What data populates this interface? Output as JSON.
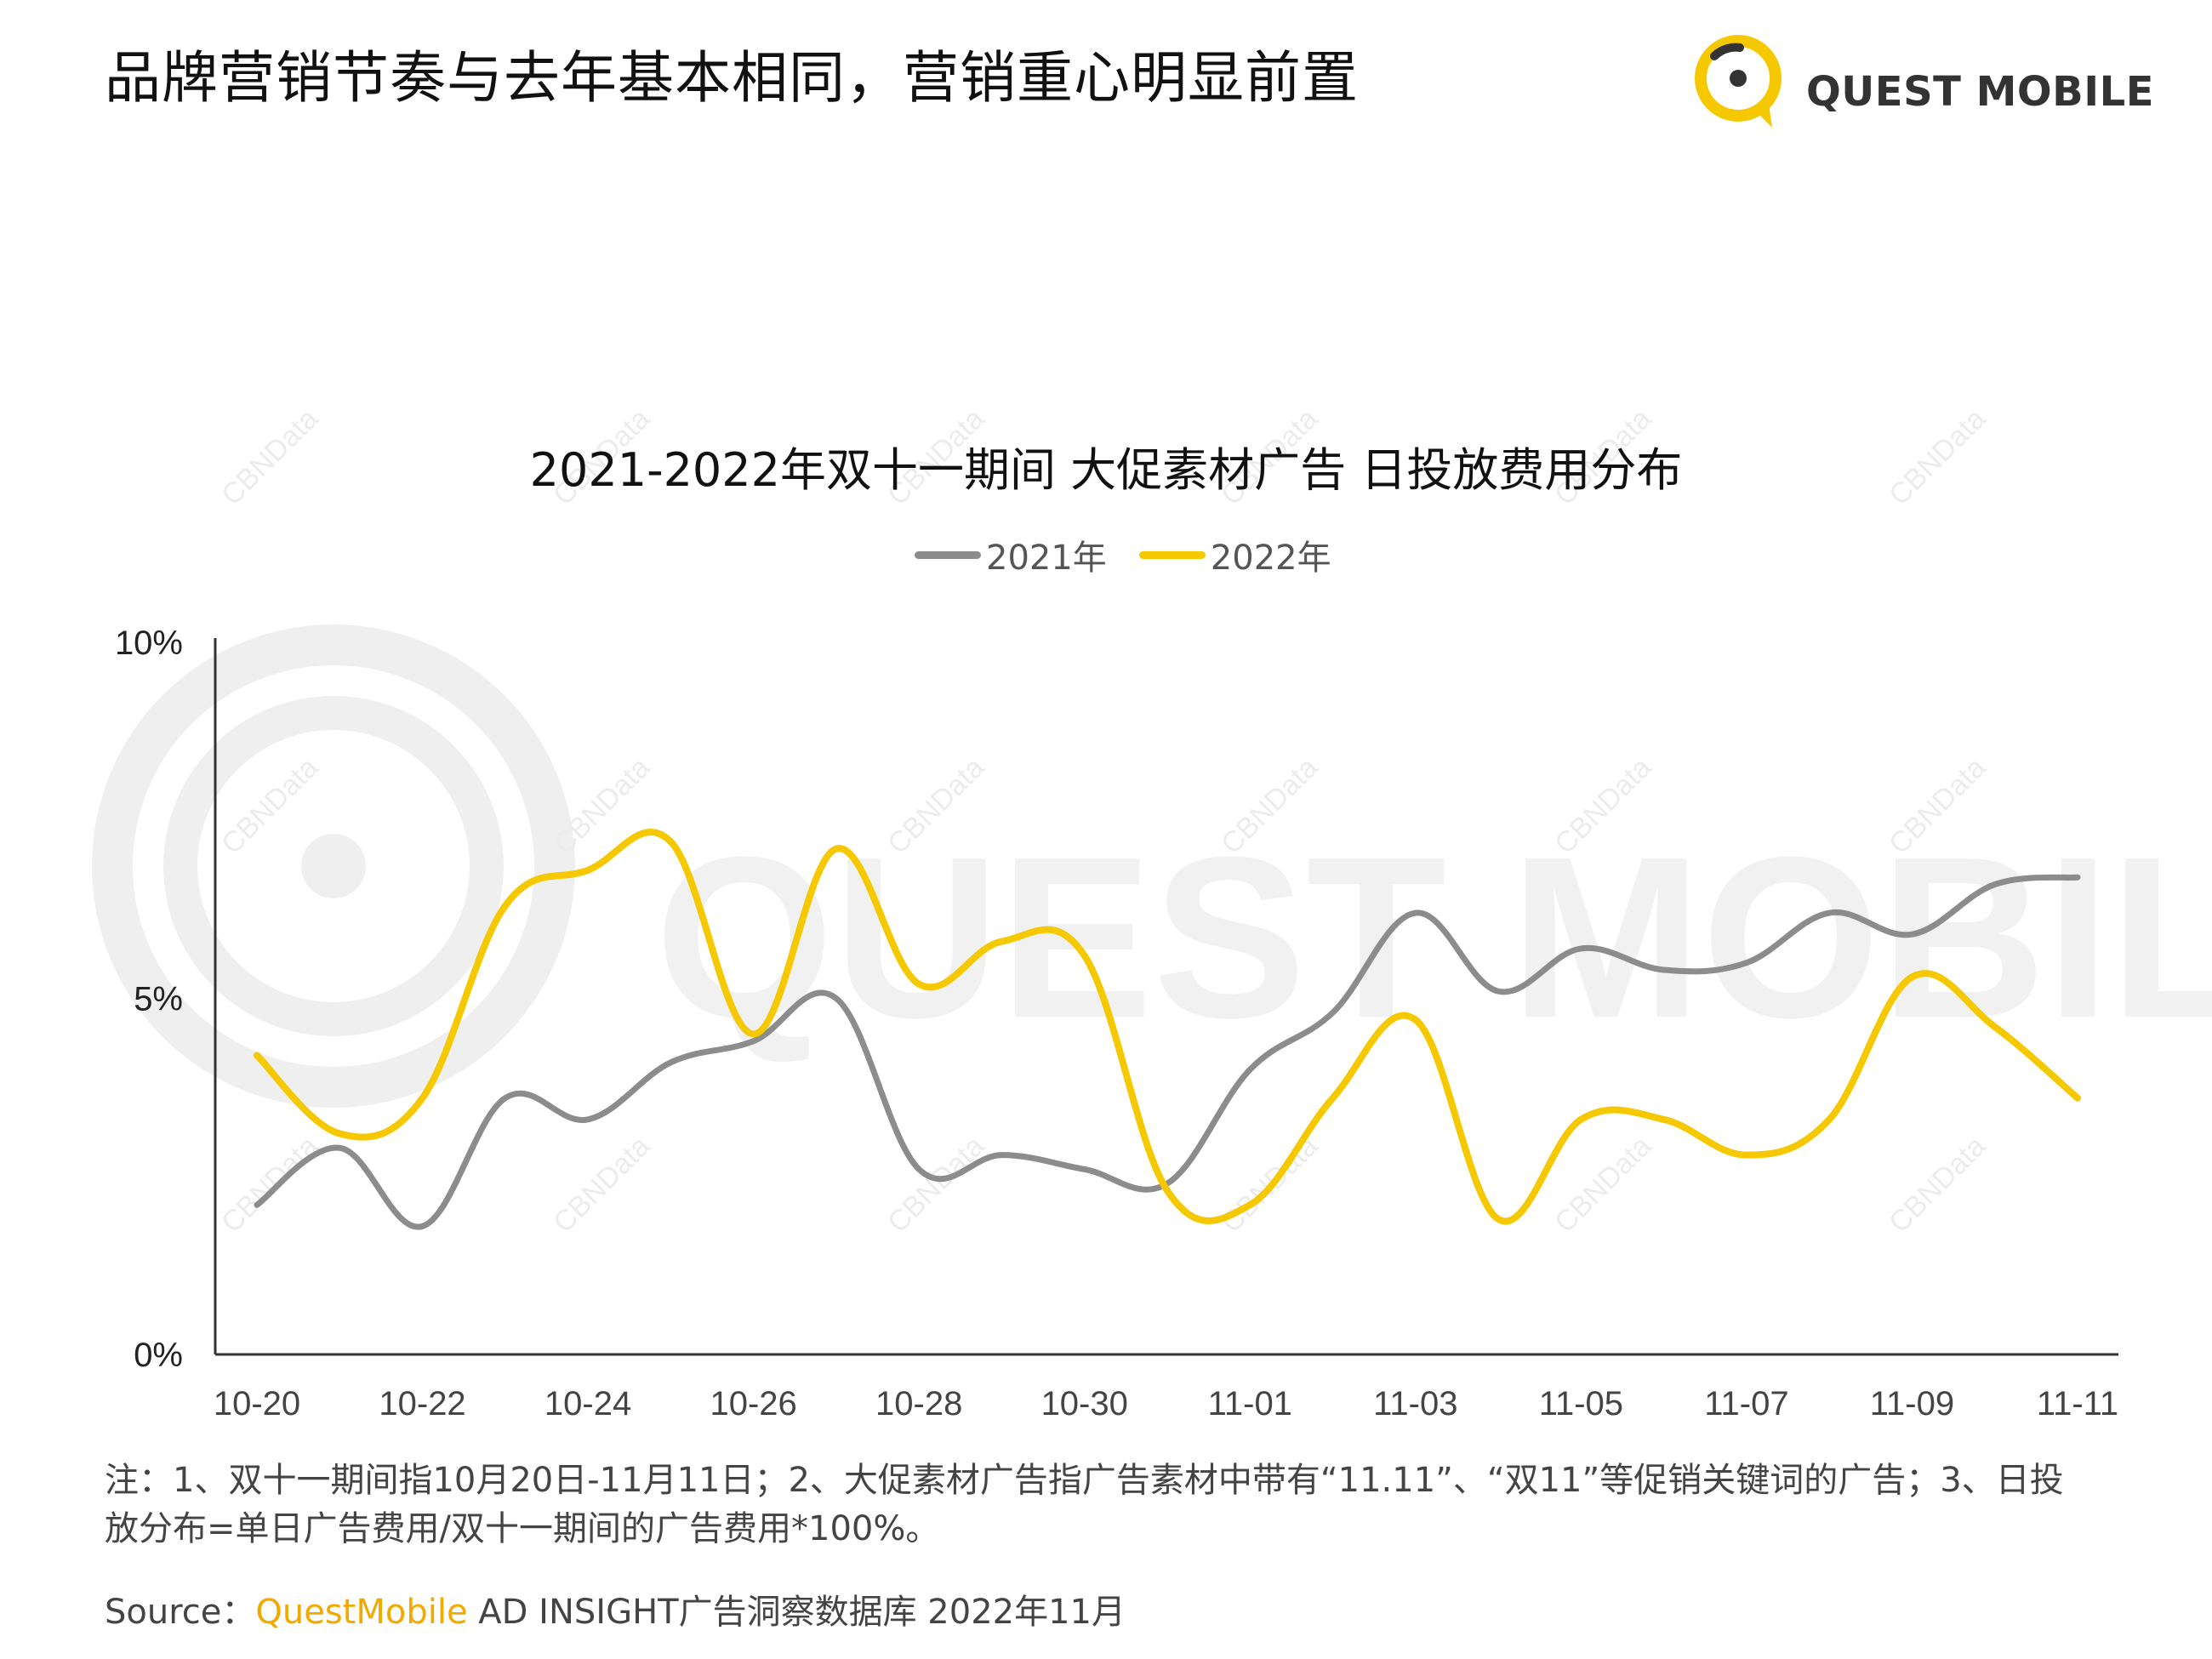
{
  "header": {
    "headline": "品牌营销节奏与去年基本相同，营销重心明显前置",
    "logo_text": "QUEST MOBILE"
  },
  "watermark": {
    "big_text": "QUEST MOBILE",
    "tile_text": "CBNData"
  },
  "colors": {
    "accent": "#F5C800",
    "series_2021": "#8C8C8C",
    "series_2022": "#F5C800",
    "axis": "#333333",
    "source_brand": "#F2A900"
  },
  "chart_data": {
    "type": "line",
    "title": "2021-2022年双十一期间 大促素材广告 日投放费用分布",
    "xlabel": "",
    "ylabel": "",
    "ylim": [
      0,
      10
    ],
    "y_unit": "%",
    "y_ticks": [
      {
        "value": 0,
        "label": "0%"
      },
      {
        "value": 5,
        "label": "5%"
      },
      {
        "value": 10,
        "label": "10%"
      }
    ],
    "categories": [
      "10-20",
      "10-21",
      "10-22",
      "10-23",
      "10-24",
      "10-25",
      "10-26",
      "10-27",
      "10-28",
      "10-29",
      "10-30",
      "10-31",
      "11-01",
      "11-02",
      "11-03",
      "11-04",
      "11-05",
      "11-06",
      "11-07",
      "11-08",
      "11-09",
      "11-10",
      "11-11"
    ],
    "x_tick_labels": [
      "10-20",
      "10-22",
      "10-24",
      "10-26",
      "10-28",
      "10-30",
      "11-01",
      "11-03",
      "11-05",
      "11-07",
      "11-09",
      "11-11"
    ],
    "grid": false,
    "legend_position": "top-center",
    "series": [
      {
        "name": "2021年",
        "color": "#8C8C8C",
        "values": [
          2.1,
          2.9,
          1.8,
          3.6,
          3.3,
          4.1,
          4.4,
          5.0,
          2.6,
          2.8,
          2.6,
          2.4,
          4.0,
          4.8,
          6.2,
          5.1,
          5.7,
          5.4,
          5.5,
          6.2,
          5.9,
          6.6,
          6.7
        ]
      },
      {
        "name": "2022年",
        "color": "#F5C800",
        "values": [
          4.2,
          3.1,
          3.6,
          6.3,
          6.8,
          7.2,
          4.5,
          7.1,
          5.2,
          5.8,
          5.6,
          2.3,
          2.1,
          3.6,
          4.7,
          1.9,
          3.3,
          3.3,
          2.8,
          3.3,
          5.3,
          4.6,
          3.6
        ]
      }
    ]
  },
  "footer": {
    "note": "注：1、双十一期间指10月20日-11月11日；2、大促素材广告指广告素材中带有“11.11”、“双11”等促销关键词的广告；3、日投放分布=单日广告费用/双十一期间的广告费用*100%。",
    "source_label": "Source：",
    "source_brand": "QuestMobile",
    "source_rest": " AD INSIGHT广告洞察数据库 2022年11月"
  }
}
